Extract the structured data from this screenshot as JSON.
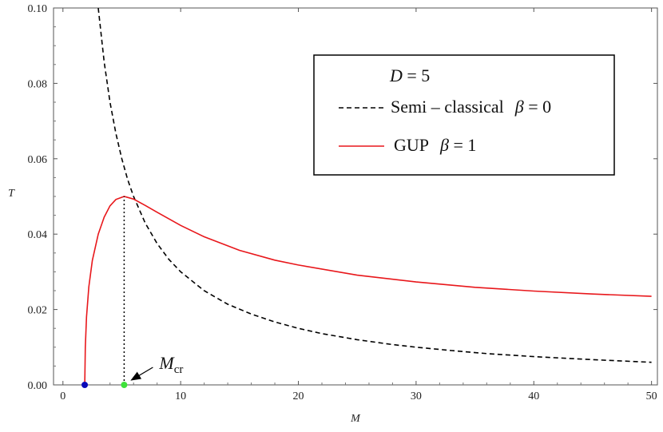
{
  "chart_data": {
    "type": "line",
    "xlabel": "M",
    "ylabel": "T",
    "xlim": [
      -0.8,
      50.5
    ],
    "ylim": [
      0,
      0.1
    ],
    "x_ticks": [
      0,
      10,
      20,
      30,
      40,
      50
    ],
    "x_tick_labels": [
      "0",
      "10",
      "20",
      "30",
      "40",
      "50"
    ],
    "y_ticks": [
      0,
      0.02,
      0.04,
      0.06,
      0.08,
      0.1
    ],
    "y_tick_labels": [
      "0.00",
      "0.02",
      "0.04",
      "0.06",
      "0.08",
      "0.10"
    ],
    "grid": false,
    "legend": {
      "placement": "top-right",
      "header": {
        "var": "D",
        "eq": " = 5"
      },
      "entries": [
        {
          "text": "Semi – classical",
          "beta_label": "β",
          "beta_value": " = 0",
          "color": "#000000",
          "style": "dashed"
        },
        {
          "text": "GUP",
          "beta_label": "β",
          "beta_value": " = 1",
          "color": "#e8171b",
          "style": "solid"
        }
      ]
    },
    "series": [
      {
        "color": "#000000",
        "style": "dashed",
        "points": [
          [
            3,
            0.1
          ],
          [
            3.5,
            0.0857
          ],
          [
            4,
            0.075
          ],
          [
            4.5,
            0.0667
          ],
          [
            5,
            0.06
          ],
          [
            5.5,
            0.0545
          ],
          [
            6,
            0.05
          ],
          [
            7,
            0.0429
          ],
          [
            8,
            0.0375
          ],
          [
            9,
            0.0333
          ],
          [
            10,
            0.03
          ],
          [
            12,
            0.025
          ],
          [
            14,
            0.0214
          ],
          [
            16,
            0.0188
          ],
          [
            18,
            0.0167
          ],
          [
            20,
            0.015
          ],
          [
            22,
            0.0136
          ],
          [
            25,
            0.012
          ],
          [
            28,
            0.0107
          ],
          [
            30,
            0.01
          ],
          [
            33,
            0.0091
          ],
          [
            36,
            0.0083
          ],
          [
            40,
            0.0075
          ],
          [
            45,
            0.0067
          ],
          [
            50,
            0.006
          ]
        ]
      },
      {
        "color": "#e8171b",
        "style": "solid",
        "points": [
          [
            1.85,
            0.0
          ],
          [
            1.9,
            0.01
          ],
          [
            2.0,
            0.018
          ],
          [
            2.2,
            0.026
          ],
          [
            2.5,
            0.033
          ],
          [
            3.0,
            0.04
          ],
          [
            3.5,
            0.0445
          ],
          [
            4.0,
            0.0475
          ],
          [
            4.5,
            0.0492
          ],
          [
            5.2,
            0.05
          ],
          [
            6,
            0.0493
          ],
          [
            7,
            0.0476
          ],
          [
            8,
            0.0458
          ],
          [
            10,
            0.0423
          ],
          [
            12,
            0.0393
          ],
          [
            15,
            0.0357
          ],
          [
            18,
            0.0331
          ],
          [
            20,
            0.0318
          ],
          [
            25,
            0.0291
          ],
          [
            30,
            0.0273
          ],
          [
            35,
            0.0259
          ],
          [
            40,
            0.0249
          ],
          [
            45,
            0.0241
          ],
          [
            50,
            0.0235
          ]
        ]
      }
    ],
    "annotations": [
      {
        "kind": "vline",
        "x": 5.2,
        "y_from": 0,
        "y_to": 0.05,
        "style": "dotted",
        "color": "#000000"
      },
      {
        "kind": "point",
        "x": 1.85,
        "y": 0,
        "color": "#0a0ab8"
      },
      {
        "kind": "point",
        "x": 5.2,
        "y": 0,
        "color": "#3ee23a"
      },
      {
        "kind": "label",
        "x": 5.2,
        "y": 0,
        "text": "M",
        "sub": "cr"
      }
    ]
  }
}
